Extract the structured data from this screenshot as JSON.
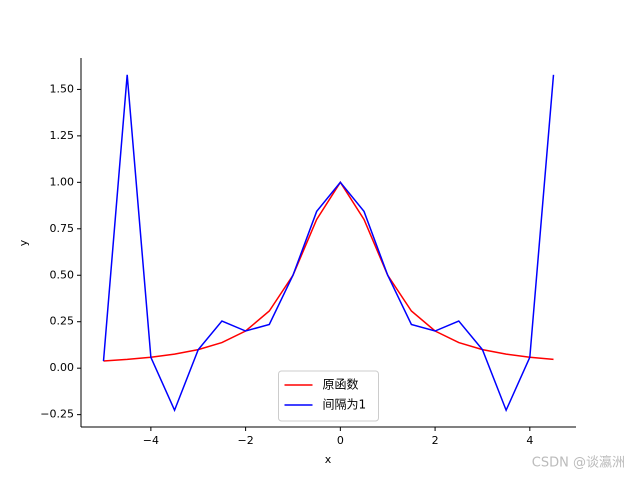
{
  "chart_data": {
    "type": "line",
    "x": [
      -5,
      -4.5,
      -4,
      -3.5,
      -3,
      -2.5,
      -2,
      -1.5,
      -1,
      -0.5,
      0,
      0.5,
      1,
      1.5,
      2,
      2.5,
      3,
      3.5,
      4,
      4.5
    ],
    "series": [
      {
        "name": "原函数",
        "color": "#ff0000",
        "values": [
          0.0385,
          0.0471,
          0.0588,
          0.0755,
          0.1,
          0.1379,
          0.2,
          0.3077,
          0.5,
          0.8,
          1,
          0.8,
          0.5,
          0.3077,
          0.2,
          0.1379,
          0.1,
          0.0755,
          0.0588,
          0.0471
        ]
      },
      {
        "name": "间隔为1",
        "color": "#0000ff",
        "values": [
          0.0385,
          1.5787,
          0.0588,
          -0.2262,
          0.1,
          0.2538,
          0.2,
          0.2353,
          0.5,
          0.8434,
          1,
          0.8434,
          0.5,
          0.2353,
          0.2,
          0.2538,
          0.1,
          -0.2262,
          0.0588,
          1.5787
        ]
      }
    ],
    "xlabel": "x",
    "ylabel": "y",
    "xlim": [
      -5.475,
      4.975
    ],
    "ylim": [
      -0.3165,
      1.669
    ],
    "xticks": [
      {
        "value": -4,
        "label": "−4"
      },
      {
        "value": -2,
        "label": "−2"
      },
      0,
      2,
      4
    ],
    "yticks": [
      {
        "value": -0.25,
        "label": "−0.25"
      },
      {
        "value": 0,
        "label": "0.00"
      },
      {
        "value": 0.25,
        "label": "0.25"
      },
      {
        "value": 0.5,
        "label": "0.50"
      },
      {
        "value": 0.75,
        "label": "0.75"
      },
      {
        "value": 1,
        "label": "1.00"
      },
      {
        "value": 1.25,
        "label": "1.25"
      },
      {
        "value": 1.5,
        "label": "1.50"
      }
    ],
    "legend": "lower center",
    "watermark": "CSDN @谈瀛洲"
  }
}
